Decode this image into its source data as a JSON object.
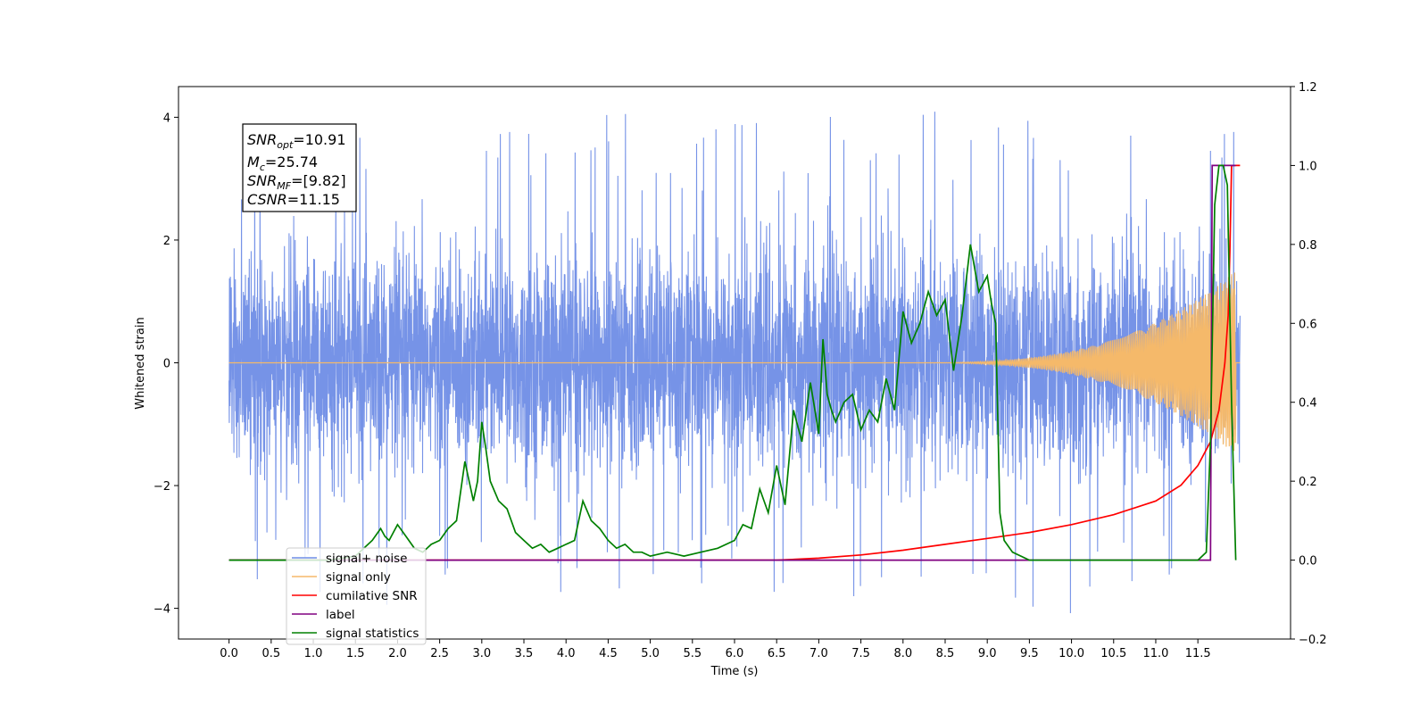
{
  "chart_data": {
    "type": "line",
    "xlabel": "Time (s)",
    "ylabel": "Whitened strain",
    "ylabel_right": "",
    "xlim": [
      -0.6,
      12.6
    ],
    "ylim": [
      -4.5,
      4.5
    ],
    "ylim_right": [
      -0.2,
      1.2
    ],
    "x_ticks": [
      "0.0",
      "0.5",
      "1.0",
      "1.5",
      "2.0",
      "2.5",
      "3.0",
      "3.5",
      "4.0",
      "4.5",
      "5.0",
      "5.5",
      "6.0",
      "6.5",
      "7.0",
      "7.5",
      "8.0",
      "8.5",
      "9.0",
      "9.5",
      "10.0",
      "10.5",
      "11.0",
      "11.5"
    ],
    "y_ticks": [
      "−4",
      "−2",
      "0",
      "2",
      "4"
    ],
    "y_ticks_right": [
      "−0.2",
      "0.0",
      "0.2",
      "0.4",
      "0.6",
      "0.8",
      "1.0",
      "1.2"
    ],
    "annotation": {
      "snr_opt_value": "=10.91",
      "mc_value": "=25.74",
      "snr_mf_value": "=[9.82]",
      "csnr_value": "=11.15"
    },
    "legend": {
      "placement": "lower-left",
      "entries": [
        "signal+ noise",
        "signal only",
        "cumilative SNR",
        "label",
        "signal statistics"
      ]
    },
    "colors": {
      "signal_noise": "#6f8de6",
      "signal_only": "#f5b96a",
      "cumulative_snr": "#ff0000",
      "label": "#800080",
      "signal_statistics": "#008000"
    },
    "series": [
      {
        "name": "signal+ noise",
        "axis": "left",
        "description_range": [
          -4.1,
          4.1
        ],
        "duration": [
          0.0,
          12.0
        ]
      },
      {
        "name": "signal only",
        "axis": "left",
        "chirp_start": 8.0,
        "chirp_end": 11.95,
        "max_amplitude": 1.5
      },
      {
        "name": "cumilative SNR",
        "axis": "right",
        "x": [
          0.0,
          6.5,
          7.0,
          7.5,
          8.0,
          8.5,
          9.0,
          9.5,
          10.0,
          10.5,
          11.0,
          11.3,
          11.5,
          11.65,
          11.75,
          11.82,
          11.86,
          11.88,
          11.9,
          11.95,
          12.0
        ],
        "y": [
          0.0,
          0.0,
          0.005,
          0.013,
          0.025,
          0.04,
          0.055,
          0.07,
          0.09,
          0.115,
          0.15,
          0.19,
          0.24,
          0.3,
          0.38,
          0.5,
          0.62,
          0.78,
          1.0,
          1.0,
          1.0
        ]
      },
      {
        "name": "label",
        "axis": "right",
        "x": [
          0.0,
          11.65,
          11.67,
          11.95
        ],
        "y": [
          0.0,
          0.0,
          1.0,
          1.0
        ]
      },
      {
        "name": "signal statistics",
        "axis": "right",
        "x": [
          0.0,
          0.3,
          0.6,
          0.9,
          1.2,
          1.5,
          1.6,
          1.7,
          1.8,
          1.85,
          1.9,
          1.95,
          2.0,
          2.1,
          2.2,
          2.3,
          2.4,
          2.5,
          2.6,
          2.7,
          2.8,
          2.9,
          2.95,
          3.0,
          3.05,
          3.1,
          3.2,
          3.3,
          3.4,
          3.5,
          3.6,
          3.7,
          3.8,
          3.9,
          4.0,
          4.1,
          4.2,
          4.3,
          4.4,
          4.5,
          4.6,
          4.7,
          4.8,
          4.9,
          5.0,
          5.2,
          5.4,
          5.6,
          5.8,
          6.0,
          6.1,
          6.2,
          6.3,
          6.4,
          6.5,
          6.6,
          6.7,
          6.8,
          6.9,
          7.0,
          7.05,
          7.1,
          7.15,
          7.2,
          7.3,
          7.4,
          7.5,
          7.6,
          7.7,
          7.8,
          7.9,
          8.0,
          8.1,
          8.2,
          8.3,
          8.4,
          8.5,
          8.6,
          8.7,
          8.8,
          8.9,
          9.0,
          9.05,
          9.1,
          9.15,
          9.2,
          9.3,
          9.5,
          9.7,
          10.0,
          10.5,
          11.0,
          11.3,
          11.5,
          11.6,
          11.65,
          11.7,
          11.75,
          11.8,
          11.85,
          11.9,
          11.95
        ],
        "y": [
          0.0,
          0.0,
          0.0,
          0.0,
          0.0,
          0.01,
          0.03,
          0.05,
          0.08,
          0.06,
          0.05,
          0.07,
          0.09,
          0.06,
          0.03,
          0.02,
          0.04,
          0.05,
          0.08,
          0.1,
          0.25,
          0.15,
          0.2,
          0.35,
          0.28,
          0.2,
          0.15,
          0.13,
          0.07,
          0.05,
          0.03,
          0.04,
          0.02,
          0.03,
          0.04,
          0.05,
          0.15,
          0.1,
          0.08,
          0.05,
          0.03,
          0.04,
          0.02,
          0.02,
          0.01,
          0.02,
          0.01,
          0.02,
          0.03,
          0.05,
          0.09,
          0.08,
          0.18,
          0.12,
          0.24,
          0.14,
          0.38,
          0.3,
          0.45,
          0.32,
          0.56,
          0.42,
          0.38,
          0.35,
          0.4,
          0.42,
          0.33,
          0.38,
          0.35,
          0.46,
          0.38,
          0.63,
          0.55,
          0.6,
          0.68,
          0.62,
          0.66,
          0.48,
          0.62,
          0.8,
          0.68,
          0.72,
          0.65,
          0.6,
          0.12,
          0.05,
          0.02,
          0.0,
          0.0,
          0.0,
          0.0,
          0.0,
          0.0,
          0.0,
          0.02,
          0.3,
          0.9,
          1.0,
          1.0,
          0.95,
          0.4,
          0.0
        ]
      }
    ]
  }
}
